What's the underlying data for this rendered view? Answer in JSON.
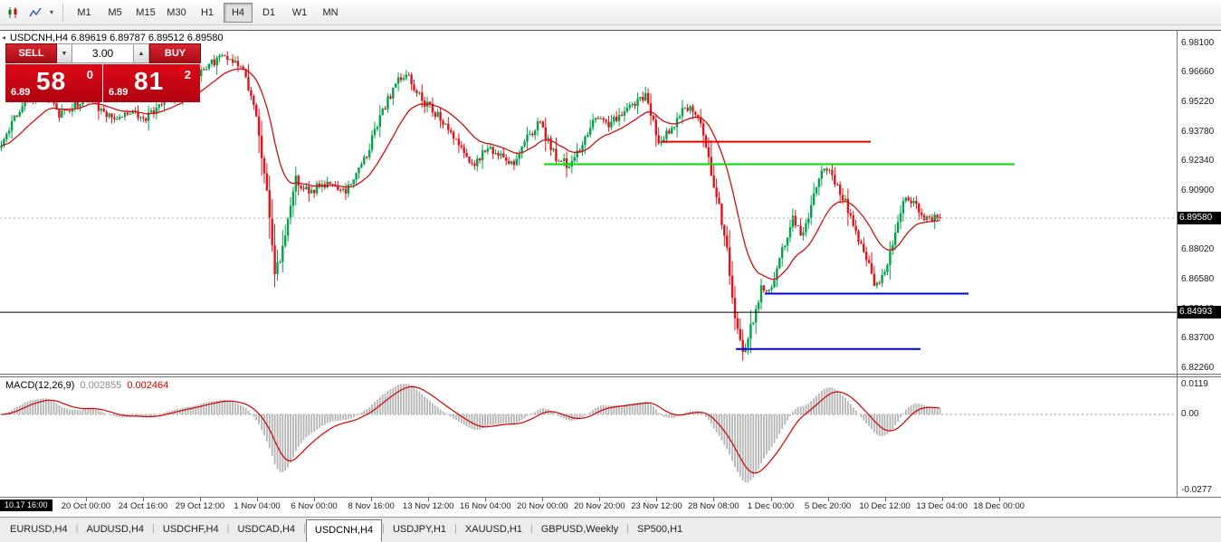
{
  "toolbar": {
    "timeframes": [
      {
        "label": "M1",
        "active": false
      },
      {
        "label": "M5",
        "active": false
      },
      {
        "label": "M15",
        "active": false
      },
      {
        "label": "M30",
        "active": false
      },
      {
        "label": "H1",
        "active": false
      },
      {
        "label": "H4",
        "active": true
      },
      {
        "label": "D1",
        "active": false
      },
      {
        "label": "W1",
        "active": false
      },
      {
        "label": "MN",
        "active": false
      }
    ]
  },
  "chart": {
    "header": {
      "symbol": "USDCNH,H4",
      "open": "6.89619",
      "high": "6.89787",
      "low": "6.89512",
      "close": "6.89580"
    },
    "trade_panel": {
      "sell": "SELL",
      "buy": "BUY",
      "volume": "3.00",
      "bid": {
        "prefix": "6.89",
        "big": "58",
        "sup": "0"
      },
      "ask": {
        "prefix": "6.89",
        "big": "81",
        "sup": "2"
      }
    },
    "price_axis": {
      "current": "6.89580",
      "level": "6.84993"
    },
    "time_axis": {
      "badge": "10.17 16:00",
      "labels": [
        "20 Oct 00:00",
        "24 Oct 16:00",
        "29 Oct 12:00",
        "1 Nov 04:00",
        "6 Nov 00:00",
        "8 Nov 16:00",
        "13 Nov 12:00",
        "16 Nov 04:00",
        "20 Nov 00:00",
        "20 Nov 20:00",
        "23 Nov 12:00",
        "28 Nov 08:00",
        "1 Dec 00:00",
        "5 Dec 20:00",
        "10 Dec 12:00",
        "13 Dec 04:00",
        "18 Dec 00:00"
      ]
    }
  },
  "macd_panel": {
    "title": "MACD(12,26,9)",
    "main_value": "0.002855",
    "signal_value": "0.002464",
    "axis_top": "0.0119",
    "axis_zero": "0.00",
    "axis_bottom": "-0.0277"
  },
  "tabs": [
    {
      "label": "EURUSD,H4",
      "active": false
    },
    {
      "label": "AUDUSD,H4",
      "active": false
    },
    {
      "label": "USDCHF,H4",
      "active": false
    },
    {
      "label": "USDCAD,H4",
      "active": false
    },
    {
      "label": "USDCNH,H4",
      "active": true
    },
    {
      "label": "USDJPY,H1",
      "active": false
    },
    {
      "label": "XAUUSD,H1",
      "active": false
    },
    {
      "label": "GBPUSD,Weekly",
      "active": false
    },
    {
      "label": "SP500,H1",
      "active": false
    }
  ],
  "chart_data": {
    "type": "candlestick",
    "symbol": "USDCNH",
    "timeframe": "H4",
    "last_ohlc": {
      "open": 6.89619,
      "high": 6.89787,
      "low": 6.89512,
      "close": 6.8958
    },
    "current_price": 6.8958,
    "level_price": 6.84993,
    "y_ticks": [
      6.981,
      6.9666,
      6.9522,
      6.9378,
      6.9234,
      6.909,
      6.8946,
      6.8802,
      6.8658,
      6.8514,
      6.837,
      6.8226
    ],
    "price_range": {
      "top": 6.987,
      "bottom": 6.82
    },
    "bars": 358,
    "seed": 73571,
    "candle_region": 0.8,
    "ma_period": 21,
    "label_start_frac": 0.073,
    "label_step_frac": 0.0485,
    "colors": {
      "up": "#00a24a",
      "down": "#e31219",
      "ma": "#cc1111",
      "macd_hist": "#b4b4b4",
      "macd_signal": "#d40000"
    },
    "hlines": [
      {
        "price": 6.933,
        "x1": 0.562,
        "x2": 0.74,
        "color": "#ee0000",
        "width": 2
      },
      {
        "price": 6.922,
        "x1": 0.462,
        "x2": 0.862,
        "color": "#00dd00",
        "width": 2
      },
      {
        "price": 6.859,
        "x1": 0.65,
        "x2": 0.823,
        "color": "#0000ee",
        "width": 2
      },
      {
        "price": 6.832,
        "x1": 0.625,
        "x2": 0.782,
        "color": "#0000ee",
        "width": 2
      },
      {
        "price": 6.84993,
        "x1": 0.0,
        "x2": 1.0,
        "color": "#000000",
        "width": 1
      }
    ],
    "price_anchors": [
      [
        0.0,
        6.93
      ],
      [
        0.012,
        6.944
      ],
      [
        0.03,
        6.9535
      ],
      [
        0.048,
        6.959
      ],
      [
        0.062,
        6.9455
      ],
      [
        0.078,
        6.9505
      ],
      [
        0.092,
        6.956
      ],
      [
        0.108,
        6.947
      ],
      [
        0.122,
        6.945
      ],
      [
        0.14,
        6.948
      ],
      [
        0.155,
        6.9445
      ],
      [
        0.172,
        6.9515
      ],
      [
        0.192,
        6.958
      ],
      [
        0.212,
        6.966
      ],
      [
        0.228,
        6.9725
      ],
      [
        0.243,
        6.975
      ],
      [
        0.258,
        6.9685
      ],
      [
        0.27,
        6.948
      ],
      [
        0.282,
        6.913
      ],
      [
        0.291,
        6.868
      ],
      [
        0.3,
        6.881
      ],
      [
        0.313,
        6.915
      ],
      [
        0.328,
        6.909
      ],
      [
        0.346,
        6.9125
      ],
      [
        0.363,
        6.9075
      ],
      [
        0.383,
        6.9195
      ],
      [
        0.403,
        6.944
      ],
      [
        0.421,
        6.9625
      ],
      [
        0.431,
        6.9665
      ],
      [
        0.444,
        6.9555
      ],
      [
        0.46,
        6.948
      ],
      [
        0.476,
        6.94
      ],
      [
        0.49,
        6.9315
      ],
      [
        0.503,
        6.9205
      ],
      [
        0.516,
        6.93
      ],
      [
        0.531,
        6.928
      ],
      [
        0.545,
        6.921
      ],
      [
        0.56,
        6.9355
      ],
      [
        0.574,
        6.942
      ],
      [
        0.59,
        6.9255
      ],
      [
        0.605,
        6.9215
      ],
      [
        0.617,
        6.93
      ],
      [
        0.631,
        6.945
      ],
      [
        0.645,
        6.941
      ],
      [
        0.66,
        6.947
      ],
      [
        0.675,
        6.952
      ],
      [
        0.687,
        6.955
      ],
      [
        0.7,
        6.934
      ],
      [
        0.714,
        6.9385
      ],
      [
        0.728,
        6.9495
      ],
      [
        0.742,
        6.9465
      ],
      [
        0.753,
        6.925
      ],
      [
        0.763,
        6.905
      ],
      [
        0.773,
        6.88
      ],
      [
        0.782,
        6.845
      ],
      [
        0.79,
        6.83
      ],
      [
        0.8,
        6.845
      ],
      [
        0.81,
        6.862
      ],
      [
        0.82,
        6.859
      ],
      [
        0.832,
        6.88
      ],
      [
        0.843,
        6.896
      ],
      [
        0.853,
        6.887
      ],
      [
        0.862,
        6.9
      ],
      [
        0.872,
        6.916
      ],
      [
        0.882,
        6.92
      ],
      [
        0.891,
        6.91
      ],
      [
        0.9,
        6.903
      ],
      [
        0.91,
        6.888
      ],
      [
        0.921,
        6.878
      ],
      [
        0.932,
        6.862
      ],
      [
        0.941,
        6.868
      ],
      [
        0.951,
        6.885
      ],
      [
        0.962,
        6.908
      ],
      [
        0.972,
        6.903
      ],
      [
        0.982,
        6.897
      ],
      [
        1.0,
        6.8958
      ]
    ],
    "macd": {
      "fast": 12,
      "slow": 26,
      "signal": 9,
      "main_value": 0.002855,
      "signal_value": 0.002464
    }
  }
}
